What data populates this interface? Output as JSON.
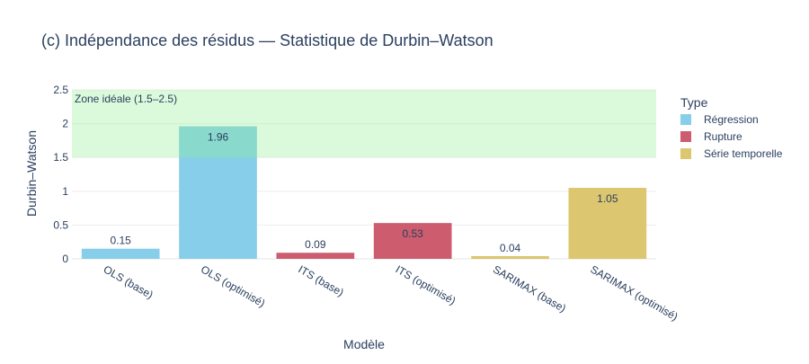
{
  "chart_data": {
    "type": "bar",
    "title": "(c) Indépendance des résidus — Statistique de Durbin–Watson",
    "xlabel": "Modèle",
    "ylabel": "Durbin–Watson",
    "ylim": [
      0,
      2.5
    ],
    "yticks": [
      "0",
      "0.5",
      "1",
      "1.5",
      "2",
      "2.5"
    ],
    "grid": true,
    "categories": [
      "OLS (base)",
      "OLS (optimisé)",
      "ITS (base)",
      "ITS (optimisé)",
      "SARIMAX (base)",
      "SARIMAX (optimisé)"
    ],
    "values": [
      0.15,
      1.96,
      0.09,
      0.53,
      0.04,
      1.05
    ],
    "value_labels": [
      "0.15",
      "1.96",
      "0.09",
      "0.53",
      "0.04",
      "1.05"
    ],
    "groups": [
      "Régression",
      "Régression",
      "Rupture",
      "Rupture",
      "Série temporelle",
      "Série temporelle"
    ],
    "legend": {
      "title": "Type",
      "position": "right",
      "entries": [
        {
          "name": "Régression",
          "color": "#87CEEB"
        },
        {
          "name": "Rupture",
          "color": "#CD5C6E"
        },
        {
          "name": "Série temporelle",
          "color": "#DCC66F"
        }
      ]
    },
    "band": {
      "from": 1.5,
      "to": 2.5,
      "label": "Zone idéale (1.5–2.5)",
      "color": "#90EE90"
    }
  }
}
